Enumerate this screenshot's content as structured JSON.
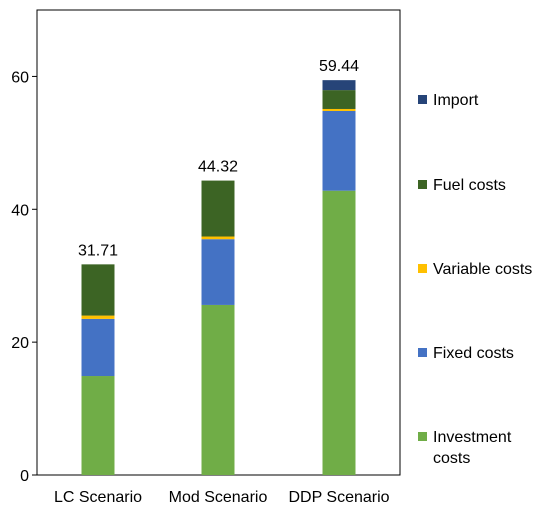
{
  "chart_data": {
    "type": "bar",
    "stacked": true,
    "categories": [
      "LC Scenario",
      "Mod Scenario",
      "DDP Scenario"
    ],
    "series": [
      {
        "name": "Investment costs",
        "color": "#70ad47",
        "values": [
          14.9,
          25.6,
          42.8
        ]
      },
      {
        "name": "Fixed costs",
        "color": "#4472c4",
        "values": [
          8.6,
          9.9,
          12.0
        ]
      },
      {
        "name": "Variable costs",
        "color": "#ffc000",
        "values": [
          0.5,
          0.4,
          0.3
        ]
      },
      {
        "name": "Fuel costs",
        "color": "#3c6424",
        "values": [
          7.71,
          8.42,
          2.84
        ]
      },
      {
        "name": "Import",
        "color": "#264478",
        "values": [
          0,
          0,
          1.5
        ]
      }
    ],
    "totals": [
      "31.71",
      "44.32",
      "59.44"
    ],
    "ylim": [
      0,
      70
    ],
    "yticks": [
      0,
      20,
      40,
      60
    ],
    "title": "",
    "xlabel": "",
    "ylabel": "",
    "legend_position": "right",
    "legend_order": [
      "Import",
      "Fuel costs",
      "Variable costs",
      "Fixed costs",
      "Investment costs"
    ],
    "grid": false
  }
}
